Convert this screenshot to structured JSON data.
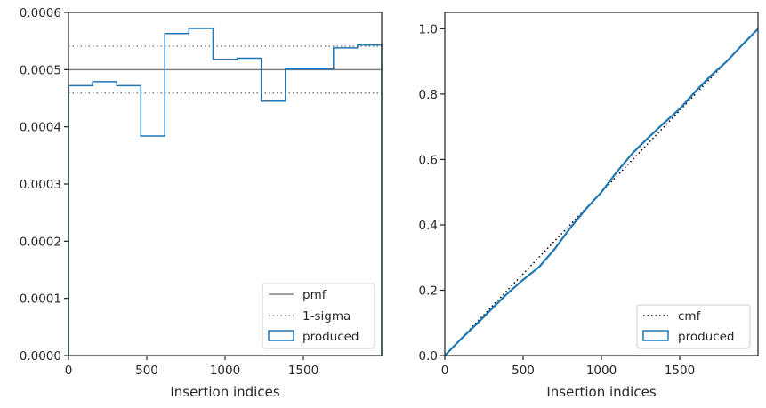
{
  "chart_data": [
    {
      "type": "histogram",
      "xlabel": "Insertion indices",
      "ylabel": "",
      "xlim": [
        0,
        2000
      ],
      "ylim": [
        0,
        0.0006
      ],
      "xticks": [
        0,
        500,
        1000,
        1500
      ],
      "xtick_labels": [
        "0",
        "500",
        "1000",
        "1500"
      ],
      "yticks": [
        0,
        0.0001,
        0.0002,
        0.0003,
        0.0004,
        0.0005,
        0.0006
      ],
      "ytick_labels": [
        "0.0000",
        "0.0001",
        "0.0002",
        "0.0003",
        "0.0004",
        "0.0005",
        "0.0006"
      ],
      "reference_lines": [
        {
          "name": "pmf",
          "y": 0.0005,
          "style": "solid",
          "color": "#808080"
        },
        {
          "name": "1-sigma",
          "y": 0.000541,
          "style": "dotted",
          "color": "#808080"
        },
        {
          "name": "1-sigma",
          "y": 0.000459,
          "style": "dotted",
          "color": "#808080"
        }
      ],
      "series": [
        {
          "name": "produced",
          "color": "#1f77b4",
          "bin_edges": [
            0,
            154,
            308,
            462,
            615,
            769,
            923,
            1077,
            1231,
            1385,
            1538,
            1692,
            1846,
            2000
          ],
          "values": [
            0.000472,
            0.000479,
            0.000472,
            0.000384,
            0.000563,
            0.000572,
            0.000518,
            0.00052,
            0.000445,
            0.000501,
            0.000501,
            0.000538,
            0.000543
          ]
        }
      ],
      "legend": {
        "position": "lower right",
        "entries": [
          {
            "label": "pmf",
            "kind": "solid-line",
            "color": "#808080"
          },
          {
            "label": "1-sigma",
            "kind": "dotted-line",
            "color": "#808080"
          },
          {
            "label": "produced",
            "kind": "box",
            "color": "#1f77b4"
          }
        ]
      },
      "grid": false
    },
    {
      "type": "line",
      "xlabel": "Insertion indices",
      "ylabel": "",
      "xlim": [
        0,
        2000
      ],
      "ylim": [
        0,
        1.05
      ],
      "xticks": [
        0,
        500,
        1000,
        1500
      ],
      "xtick_labels": [
        "0",
        "500",
        "1000",
        "1500"
      ],
      "yticks": [
        0,
        0.2,
        0.4,
        0.6,
        0.8,
        1.0
      ],
      "ytick_labels": [
        "0.0",
        "0.2",
        "0.4",
        "0.6",
        "0.8",
        "1.0"
      ],
      "series": [
        {
          "name": "cmf",
          "style": "dotted",
          "color": "#000000",
          "x": [
            0,
            2000
          ],
          "y": [
            0,
            1.0
          ]
        },
        {
          "name": "produced",
          "style": "solid",
          "color": "#1f77b4",
          "x": [
            0,
            100,
            200,
            300,
            400,
            500,
            600,
            700,
            800,
            900,
            1000,
            1100,
            1200,
            1300,
            1400,
            1500,
            1600,
            1700,
            1800,
            1900,
            2000
          ],
          "y": [
            0,
            0.049,
            0.095,
            0.143,
            0.19,
            0.232,
            0.27,
            0.325,
            0.39,
            0.448,
            0.5,
            0.563,
            0.62,
            0.667,
            0.712,
            0.755,
            0.808,
            0.857,
            0.9,
            0.951,
            1.0
          ]
        }
      ],
      "legend": {
        "position": "lower right",
        "entries": [
          {
            "label": "cmf",
            "kind": "dotted-line",
            "color": "#000000"
          },
          {
            "label": "produced",
            "kind": "box",
            "color": "#1f77b4"
          }
        ]
      },
      "grid": false
    }
  ]
}
